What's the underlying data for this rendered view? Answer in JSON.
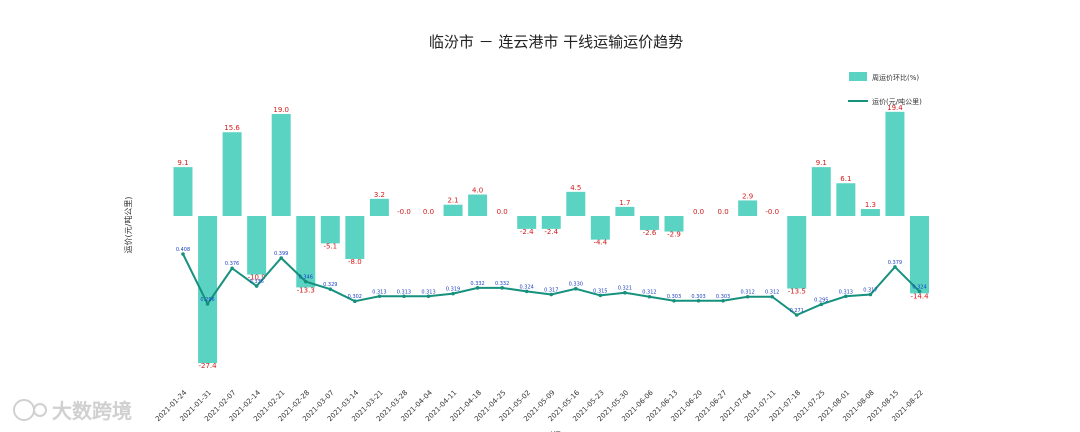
{
  "chart_data": {
    "type": "bar",
    "title": "临汾市 － 连云港市 干线运输运价趋势",
    "ylabel": "运价(元/吨公里)",
    "xlabel": "时间",
    "legend_position": "top-right",
    "categories": [
      "2021-01-24",
      "2021-01-31",
      "2021-02-07",
      "2021-02-14",
      "2021-02-21",
      "2021-02-28",
      "2021-03-07",
      "2021-03-14",
      "2021-03-21",
      "2021-03-28",
      "2021-04-04",
      "2021-04-11",
      "2021-04-18",
      "2021-04-25",
      "2021-05-02",
      "2021-05-09",
      "2021-05-16",
      "2021-05-23",
      "2021-05-30",
      "2021-06-06",
      "2021-06-13",
      "2021-06-20",
      "2021-06-27",
      "2021-07-04",
      "2021-07-11",
      "2021-07-18",
      "2021-07-25",
      "2021-08-01",
      "2021-08-08",
      "2021-08-15",
      "2021-08-22"
    ],
    "series": [
      {
        "name": "周运价环比(%)",
        "kind": "bar",
        "color": "#5bd3c3",
        "values": [
          9.1,
          -27.4,
          15.6,
          -10.9,
          19.0,
          -13.3,
          -5.1,
          -8.0,
          3.2,
          -0.0,
          0.0,
          2.1,
          4.0,
          0.0,
          -2.4,
          -2.4,
          4.5,
          -4.4,
          1.7,
          -2.6,
          -2.9,
          0.0,
          0.0,
          2.9,
          -0.0,
          -13.5,
          9.1,
          6.1,
          1.3,
          19.4,
          -14.4
        ],
        "labels": [
          "9.1",
          "-27.4",
          "15.6",
          "-10.9",
          "19.0",
          "-13.3",
          "-5.1",
          "-8.0",
          "3.2",
          "-0.0",
          "0.0",
          "2.1",
          "4.0",
          "0.0",
          "-2.4",
          "-2.4",
          "4.5",
          "-4.4",
          "1.7",
          "-2.6",
          "-2.9",
          "0.0",
          "0.0",
          "2.9",
          "-0.0",
          "-13.5",
          "9.1",
          "6.1",
          "1.3",
          "19.4",
          "-14.4"
        ]
      },
      {
        "name": "运价(元/吨公里)",
        "kind": "line",
        "color": "#16917e",
        "values": [
          0.408,
          0.296,
          0.376,
          0.336,
          0.399,
          0.346,
          0.329,
          0.302,
          0.313,
          0.313,
          0.313,
          0.319,
          0.332,
          0.332,
          0.324,
          0.317,
          0.33,
          0.315,
          0.321,
          0.312,
          0.303,
          0.303,
          0.303,
          0.312,
          0.312,
          0.271,
          0.295,
          0.313,
          0.317,
          0.379,
          0.324
        ],
        "labels": [
          "0.408",
          "0.296",
          "0.376",
          "0.336",
          "0.399",
          "0.346",
          "0.329",
          "0.302",
          "0.313",
          "0.313",
          "0.313",
          "0.319",
          "0.332",
          "0.332",
          "0.324",
          "0.317",
          "0.330",
          "0.315",
          "0.321",
          "0.312",
          "0.303",
          "0.303",
          "0.303",
          "0.312",
          "0.312",
          "0.271",
          "0.295",
          "0.313",
          "0.317",
          "0.379",
          "0.324"
        ]
      }
    ]
  },
  "watermark": "大数跨境",
  "colors": {
    "bar": "#5bd3c3",
    "line": "#16917e",
    "bar_label": "#d41a1a",
    "point_label": "#1b3fc4"
  }
}
